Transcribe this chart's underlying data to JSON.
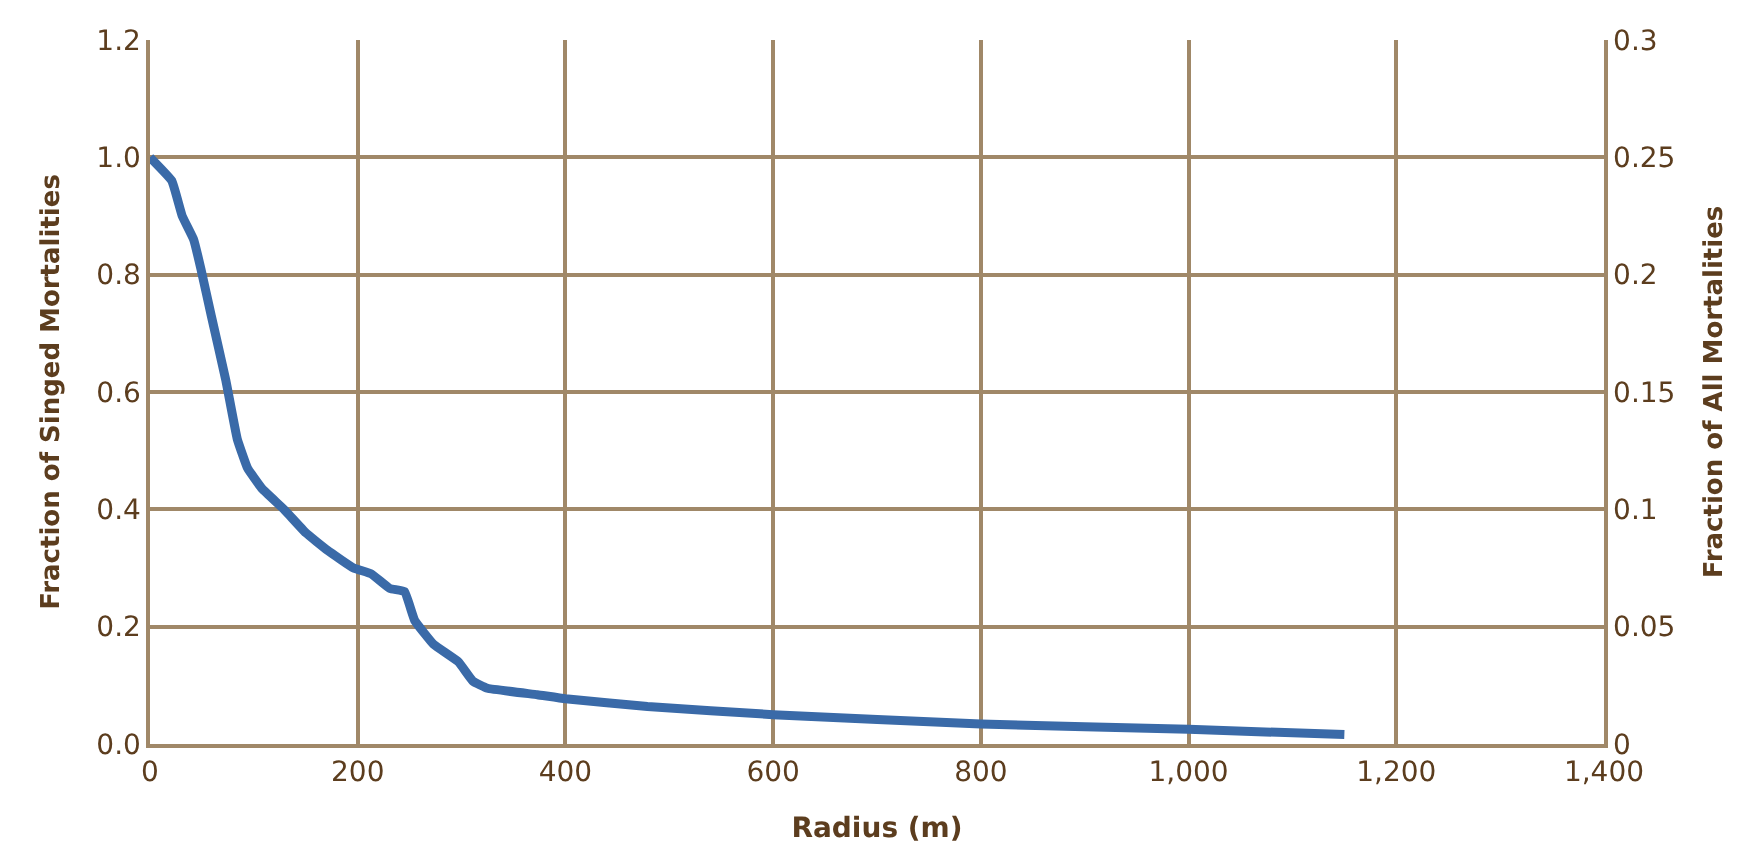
{
  "chart_data": {
    "type": "line",
    "xlabel": "Radius (m)",
    "ylabel": "Fraction of Singed Mortalities",
    "y2label": "Fraction of All Mortalities",
    "x": [
      0,
      21,
      31,
      42,
      49,
      59,
      73,
      84,
      94,
      108,
      129,
      150,
      171,
      196,
      213,
      231,
      245,
      255,
      273,
      297,
      311,
      325,
      373,
      400,
      479,
      600,
      800,
      1000,
      1150
    ],
    "series": [
      {
        "color": "#3a6aa8",
        "values": [
          1.0,
          0.96,
          0.9,
          0.86,
          0.81,
          0.73,
          0.62,
          0.52,
          0.47,
          0.435,
          0.4,
          0.36,
          0.33,
          0.3,
          0.29,
          0.265,
          0.26,
          0.21,
          0.17,
          0.14,
          0.107,
          0.095,
          0.084,
          0.077,
          0.064,
          0.05,
          0.034,
          0.025,
          0.016
        ]
      }
    ],
    "xlim": [
      0,
      1400
    ],
    "xticks": [
      0,
      200,
      400,
      600,
      800,
      {
        "value": 1000,
        "label": "1,000"
      },
      {
        "value": 1200,
        "label": "1,200"
      },
      {
        "value": 1400,
        "label": "1,400"
      }
    ],
    "ylim": [
      0,
      1.2
    ],
    "yticks": [
      {
        "value": 0,
        "label": "0.0"
      },
      0.2,
      0.4,
      0.6,
      0.8,
      {
        "value": 1,
        "label": "1.0"
      },
      1.2
    ],
    "y2lim": [
      0,
      0.3
    ],
    "y2ticks": [
      0,
      0.05,
      0.1,
      0.15,
      0.2,
      0.25,
      0.3
    ],
    "grid": true,
    "marker": "none",
    "line_style": "solid",
    "legend": false
  }
}
